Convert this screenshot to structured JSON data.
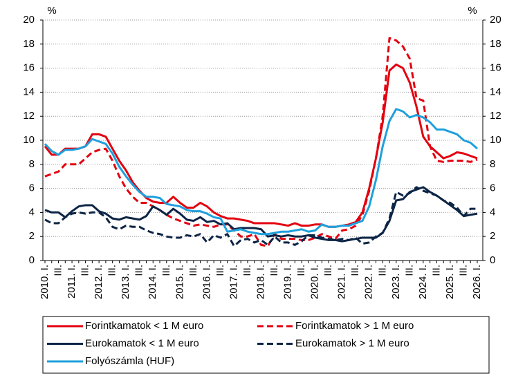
{
  "chart_data": {
    "type": "line",
    "y_unit_left": "%",
    "y_unit_right": "%",
    "categories": [
      "2010. I.",
      null,
      "III.",
      null,
      "2011. I.",
      null,
      "III.",
      null,
      "2012. I.",
      null,
      "III.",
      null,
      "2013. I.",
      null,
      "III.",
      null,
      "2014. I.",
      null,
      "III.",
      null,
      "2015. I.",
      null,
      "III.",
      null,
      "2016. I.",
      null,
      "III.",
      null,
      "2017. I.",
      null,
      "III.",
      null,
      "2018. I.",
      null,
      "III.",
      null,
      "2019. I.",
      null,
      "III.",
      null,
      "2020. I.",
      null,
      "III.",
      null,
      "2021. I.",
      null,
      "III.",
      null,
      "2022. I.",
      null,
      "III.",
      null,
      "2023. I.",
      null,
      "III.",
      null,
      "2024. I.",
      null,
      "III.",
      null,
      "2025. I.",
      null,
      "III.",
      null,
      "2026. I."
    ],
    "ylim": [
      0,
      20
    ],
    "yticks": [
      0,
      2,
      4,
      6,
      8,
      10,
      12,
      14,
      16,
      18,
      20
    ],
    "y2lim": [
      0,
      20
    ],
    "y2ticks": [
      0,
      2,
      4,
      6,
      8,
      10,
      12,
      14,
      16,
      18,
      20
    ],
    "grid": true,
    "legend": "bottom",
    "series": [
      {
        "name": "Forintkamatok < 1 M euro",
        "color": "#e3000f",
        "dashed": false,
        "values": [
          9.5,
          8.8,
          8.8,
          9.3,
          9.3,
          9.3,
          9.5,
          10.5,
          10.5,
          10.3,
          9.3,
          8.3,
          7.5,
          6.5,
          5.8,
          5.2,
          4.9,
          4.8,
          4.8,
          5.3,
          4.8,
          4.4,
          4.4,
          4.8,
          4.5,
          4.0,
          3.7,
          3.5,
          3.5,
          3.4,
          3.3,
          3.1,
          3.1,
          3.1,
          3.1,
          3.0,
          2.9,
          3.1,
          2.9,
          2.9,
          3.0,
          3.0,
          2.8,
          2.8,
          2.9,
          3.0,
          3.2,
          4.0,
          6.0,
          8.5,
          11.5,
          15.8,
          16.3,
          16.0,
          14.8,
          12.8,
          10.3,
          9.5,
          9.0,
          8.5,
          8.7,
          9.0,
          8.9,
          8.7,
          8.5
        ]
      },
      {
        "name": "Forintkamatok > 1 M euro",
        "color": "#e3000f",
        "dashed": true,
        "values": [
          7.0,
          7.2,
          7.4,
          8.0,
          8.0,
          8.0,
          8.5,
          9.0,
          9.2,
          9.3,
          8.3,
          7.0,
          6.0,
          5.3,
          4.8,
          4.8,
          4.5,
          4.2,
          3.8,
          3.5,
          3.3,
          3.1,
          2.9,
          3.0,
          2.9,
          2.8,
          3.0,
          3.0,
          2.5,
          2.0,
          2.0,
          2.2,
          1.3,
          1.2,
          2.2,
          1.8,
          1.8,
          1.8,
          1.7,
          1.7,
          1.9,
          2.2,
          2.0,
          1.8,
          2.5,
          2.6,
          2.9,
          3.8,
          5.8,
          8.5,
          12.0,
          18.5,
          18.3,
          17.8,
          16.8,
          13.5,
          13.3,
          9.5,
          8.3,
          8.2,
          8.3,
          8.3,
          8.3,
          8.2,
          8.4
        ]
      },
      {
        "name": "Eurokamatok < 1 M euro",
        "color": "#0c2445",
        "dashed": false,
        "values": [
          4.2,
          4.0,
          4.0,
          3.6,
          4.1,
          4.5,
          4.6,
          4.6,
          4.1,
          3.9,
          3.5,
          3.4,
          3.6,
          3.5,
          3.4,
          3.7,
          4.5,
          4.2,
          3.8,
          4.3,
          3.9,
          3.4,
          3.3,
          3.6,
          3.2,
          3.3,
          3.0,
          3.1,
          2.6,
          2.7,
          2.7,
          2.7,
          2.6,
          2.0,
          2.1,
          2.0,
          2.1,
          2.0,
          2.0,
          2.1,
          1.9,
          1.8,
          1.7,
          1.7,
          1.6,
          1.7,
          1.8,
          1.9,
          1.9,
          1.9,
          2.3,
          3.3,
          5.0,
          5.1,
          5.7,
          5.9,
          6.1,
          5.7,
          5.4,
          5.0,
          4.6,
          4.2,
          3.7,
          3.8,
          3.9
        ]
      },
      {
        "name": "Eurokamatok > 1 M euro",
        "color": "#0c2445",
        "dashed": true,
        "values": [
          3.4,
          3.1,
          3.1,
          3.6,
          3.9,
          4.0,
          3.9,
          4.0,
          4.0,
          3.6,
          2.8,
          2.6,
          2.9,
          2.8,
          2.8,
          2.5,
          2.3,
          2.2,
          2.0,
          1.9,
          1.9,
          2.1,
          2.0,
          2.2,
          1.5,
          2.1,
          1.9,
          2.2,
          1.2,
          1.7,
          1.8,
          1.5,
          1.7,
          1.3,
          2.0,
          1.5,
          1.5,
          1.3,
          1.6,
          2.1,
          2.1,
          1.9,
          1.8,
          1.7,
          1.8,
          1.7,
          1.9,
          1.4,
          1.5,
          2.0,
          2.3,
          3.5,
          5.7,
          5.4,
          5.6,
          6.1,
          5.8,
          5.6,
          5.4,
          5.0,
          4.8,
          4.4,
          3.7,
          4.3,
          4.3
        ]
      },
      {
        "name": "Folyószámla (HUF)",
        "color": "#1ea0dc",
        "dashed": false,
        "values": [
          9.7,
          9.1,
          8.8,
          9.2,
          9.2,
          9.3,
          9.5,
          10.1,
          9.9,
          9.7,
          8.9,
          7.8,
          7.0,
          6.3,
          5.7,
          5.3,
          5.3,
          5.2,
          4.7,
          4.6,
          4.5,
          4.2,
          4.1,
          4.1,
          3.9,
          3.6,
          3.5,
          2.4,
          2.5,
          2.6,
          2.4,
          2.3,
          2.2,
          2.2,
          2.3,
          2.4,
          2.4,
          2.5,
          2.6,
          2.4,
          2.5,
          3.0,
          2.8,
          2.8,
          2.9,
          2.9,
          3.1,
          3.3,
          4.5,
          6.7,
          9.5,
          11.6,
          12.6,
          12.4,
          11.9,
          12.1,
          11.9,
          11.5,
          10.9,
          10.9,
          10.7,
          10.5,
          10.0,
          9.8,
          9.3
        ]
      }
    ]
  }
}
